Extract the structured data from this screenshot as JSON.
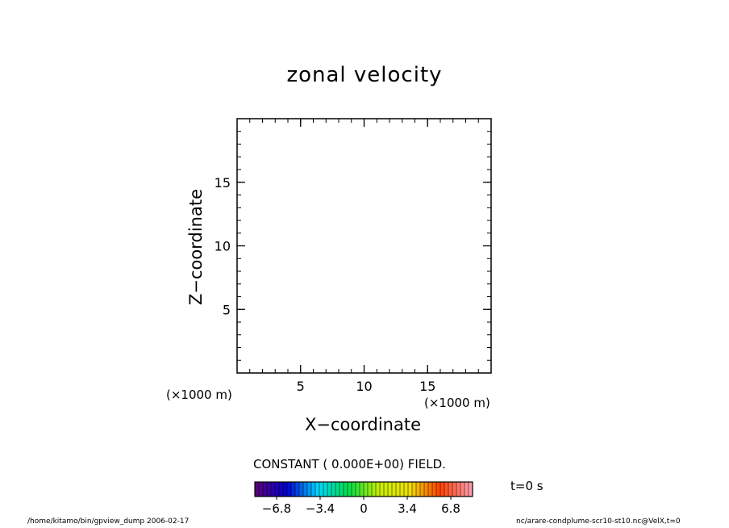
{
  "chart_data": {
    "type": "heatmap",
    "title": "zonal velocity",
    "xlabel": "X−coordinate",
    "ylabel": "Z−coordinate",
    "x_unit": "(×1000 m)",
    "y_unit": "(×1000 m)",
    "xlim": [
      0,
      20
    ],
    "ylim": [
      0,
      20
    ],
    "x_ticks": [
      5,
      10,
      15
    ],
    "y_ticks": [
      5,
      10,
      15
    ],
    "x_minor_step": 1,
    "y_minor_step": 1,
    "field_note": "CONSTANT ( 0.000E+00) FIELD.",
    "field_value": 0.0,
    "colorbar": {
      "min": -8.5,
      "max": 8.5,
      "ticks": [
        -6.8,
        -3.4,
        0,
        3.4,
        6.8
      ],
      "tick_labels": [
        "−6.8",
        "−3.4",
        "0",
        "3.4",
        "6.8"
      ],
      "colors": [
        "#5a007f",
        "#0000d0",
        "#00d8ff",
        "#00e04a",
        "#c8f000",
        "#f0e000",
        "#ff4000",
        "#ff9aaa"
      ]
    },
    "time_label": "t=0 s"
  },
  "footer": {
    "left": "/home/kitamo/bin/gpview_dump  2006-02-17",
    "right": "nc/arare-condplume-scr10-st10.nc@VelX,t=0"
  }
}
